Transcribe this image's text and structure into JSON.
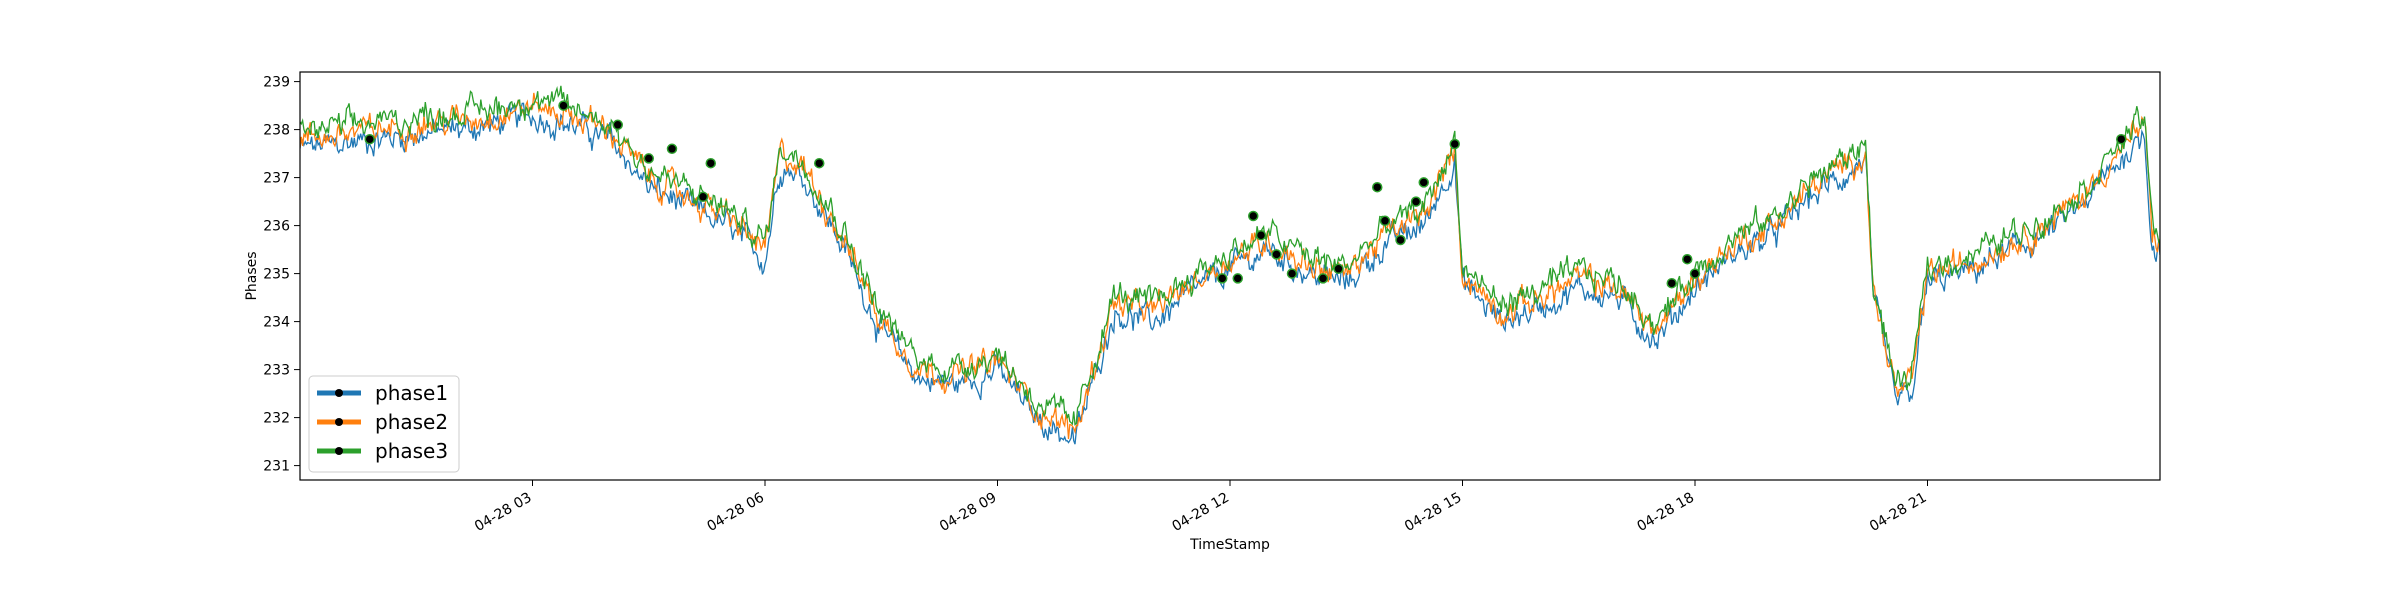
{
  "chart_data": {
    "type": "line",
    "title": "",
    "xlabel": "TimeStamp",
    "ylabel": "Phases",
    "xlim": [
      "04-28 00:00",
      "04-28 23:59"
    ],
    "ylim": [
      230.7,
      239.2
    ],
    "y_ticks": [
      231,
      232,
      233,
      234,
      235,
      236,
      237,
      238,
      239
    ],
    "x_ticks": [
      {
        "label": "04-28 03",
        "hour": 3
      },
      {
        "label": "04-28 06",
        "hour": 6
      },
      {
        "label": "04-28 09",
        "hour": 9
      },
      {
        "label": "04-28 12",
        "hour": 12
      },
      {
        "label": "04-28 15",
        "hour": 15
      },
      {
        "label": "04-28 18",
        "hour": 18
      },
      {
        "label": "04-28 21",
        "hour": 21
      }
    ],
    "grid": false,
    "legend": "lower-left",
    "series": [
      {
        "name": "phase1",
        "color": "#1f77b4",
        "offset": -0.2
      },
      {
        "name": "phase2",
        "color": "#ff7f0e",
        "offset": 0.0
      },
      {
        "name": "phase3",
        "color": "#2ca02c",
        "offset": 0.15
      }
    ],
    "trend": {
      "hour": [
        0.0,
        0.5,
        1.0,
        1.5,
        2.0,
        2.5,
        3.0,
        3.5,
        4.0,
        4.5,
        5.0,
        5.5,
        6.0,
        6.2,
        6.5,
        7.0,
        7.5,
        8.0,
        8.5,
        9.0,
        9.5,
        10.0,
        10.5,
        11.0,
        11.5,
        12.0,
        12.5,
        13.0,
        13.5,
        14.0,
        14.5,
        14.9,
        15.0,
        15.5,
        16.0,
        16.5,
        17.0,
        17.5,
        18.0,
        18.5,
        19.0,
        19.5,
        20.0,
        20.2,
        20.3,
        20.6,
        20.8,
        21.0,
        21.5,
        22.0,
        22.5,
        23.0,
        23.5,
        23.8,
        23.9,
        24.0
      ],
      "value": [
        237.8,
        237.9,
        238.0,
        238.1,
        238.2,
        238.3,
        238.5,
        238.3,
        238.0,
        237.0,
        236.6,
        236.2,
        235.5,
        237.5,
        237.2,
        235.8,
        234.0,
        233.0,
        232.9,
        233.2,
        232.2,
        231.7,
        234.4,
        234.2,
        234.8,
        235.3,
        235.7,
        235.2,
        235.0,
        235.8,
        236.2,
        237.6,
        235.0,
        234.2,
        234.5,
        234.9,
        234.7,
        233.8,
        234.9,
        235.6,
        236.0,
        236.8,
        237.3,
        237.6,
        234.6,
        232.5,
        232.7,
        235.0,
        235.2,
        235.6,
        236.0,
        236.6,
        237.6,
        238.1,
        235.8,
        235.7
      ]
    },
    "markers": [
      {
        "hour": 0.9,
        "value": 237.8
      },
      {
        "hour": 3.4,
        "value": 238.5
      },
      {
        "hour": 4.1,
        "value": 238.1
      },
      {
        "hour": 4.5,
        "value": 237.4
      },
      {
        "hour": 4.8,
        "value": 237.6
      },
      {
        "hour": 5.2,
        "value": 236.6
      },
      {
        "hour": 5.3,
        "value": 237.3
      },
      {
        "hour": 6.7,
        "value": 237.3
      },
      {
        "hour": 11.9,
        "value": 234.9
      },
      {
        "hour": 12.1,
        "value": 234.9
      },
      {
        "hour": 12.3,
        "value": 236.2
      },
      {
        "hour": 12.4,
        "value": 235.8
      },
      {
        "hour": 12.6,
        "value": 235.4
      },
      {
        "hour": 12.8,
        "value": 235.0
      },
      {
        "hour": 13.2,
        "value": 234.9
      },
      {
        "hour": 13.4,
        "value": 235.1
      },
      {
        "hour": 13.9,
        "value": 236.8
      },
      {
        "hour": 14.0,
        "value": 236.1
      },
      {
        "hour": 14.2,
        "value": 235.7
      },
      {
        "hour": 14.4,
        "value": 236.5
      },
      {
        "hour": 14.5,
        "value": 236.9
      },
      {
        "hour": 14.9,
        "value": 237.7
      },
      {
        "hour": 17.7,
        "value": 234.8
      },
      {
        "hour": 17.9,
        "value": 235.3
      },
      {
        "hour": 18.0,
        "value": 235.0
      },
      {
        "hour": 23.5,
        "value": 237.8
      }
    ]
  }
}
